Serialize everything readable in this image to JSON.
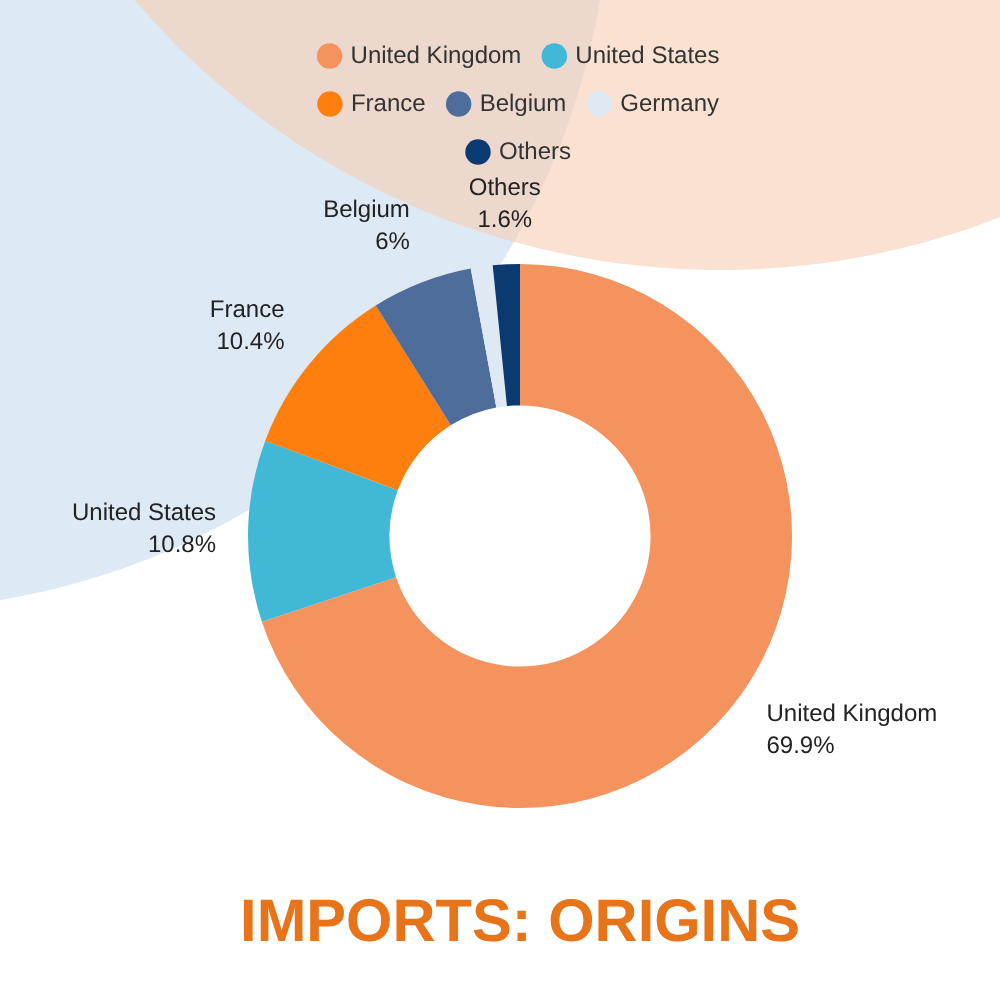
{
  "chart_data": {
    "type": "donut",
    "title": "IMPORTS: ORIGINS",
    "categories": [
      "United Kingdom",
      "United States",
      "France",
      "Belgium",
      "Germany",
      "Others"
    ],
    "values": [
      69.9,
      10.8,
      10.4,
      6,
      1.3,
      1.6
    ],
    "value_labels": [
      "69.9%",
      "10.8%",
      "10.4%",
      "6%",
      null,
      "1.6%"
    ],
    "colors": [
      "#f4935e",
      "#41b8d5",
      "#ff7f0e",
      "#4f6d9a",
      "#dfe9f4",
      "#0b3a70"
    ],
    "legend": "top"
  }
}
